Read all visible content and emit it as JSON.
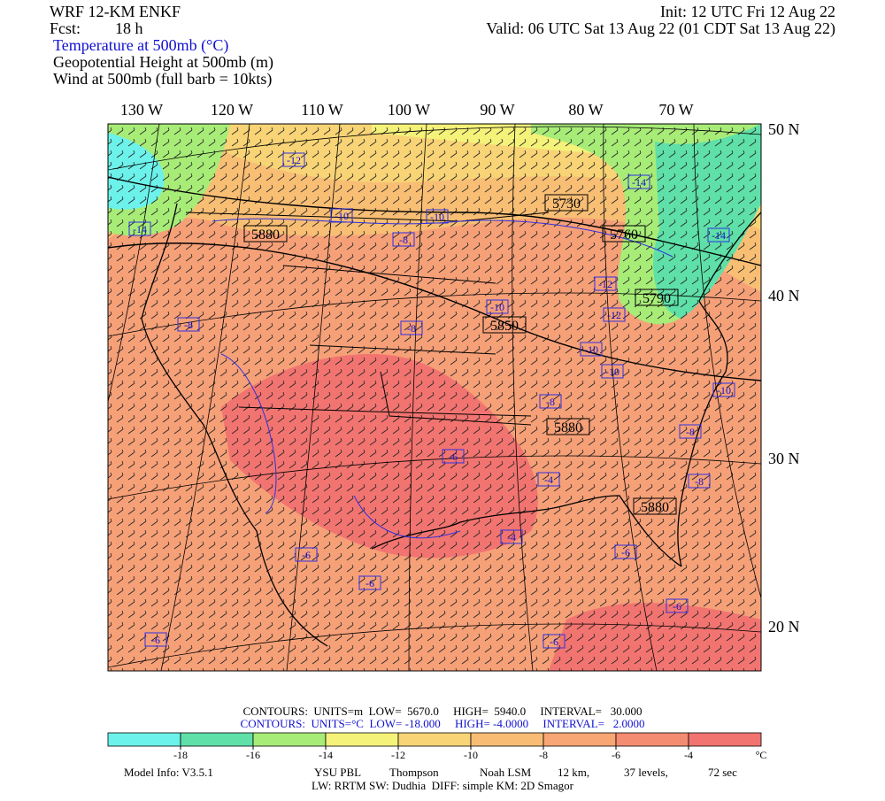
{
  "header": {
    "model": "WRF 12-KM ENKF",
    "fcst_label": "Fcst:",
    "fcst": "18 h",
    "init": "Init: 12 UTC Fri 12 Aug 22",
    "valid": "Valid: 06 UTC Sat 13 Aug 22 (01 CDT Sat 13 Aug 22)",
    "fields": [
      "Temperature at 500mb (°C)",
      "Geopotential Height at 500mb (m)",
      "Wind at 500mb (full barb = 10kts)"
    ]
  },
  "map": {
    "lon_labels": [
      "130 W",
      "120 W",
      "110 W",
      "100 W",
      "90 W",
      "80 W",
      "70 W"
    ],
    "lat_labels": [
      "50 N",
      "40 N",
      "30 N",
      "20 N"
    ],
    "height_labels": [
      5880,
      5730,
      5760,
      5790,
      5850,
      5880,
      5880
    ],
    "temperature_labels": [
      -12,
      -10,
      -10,
      -8,
      -14,
      -14,
      -14,
      -12,
      -12,
      -10,
      -8,
      -8,
      -10,
      -10,
      -10,
      -8,
      -8,
      -6,
      -4,
      -8,
      -4,
      -6,
      -6,
      -6,
      -6,
      -6,
      -6
    ]
  },
  "contours": {
    "height": "CONTOURS:  UNITS=m  LOW=  5670.0     HIGH=  5940.0     INTERVAL=   30.000",
    "temperature": "CONTOURS:  UNITS=°C  LOW= -18.000     HIGH= -4.0000     INTERVAL=   2.0000"
  },
  "colorbar": {
    "range": [
      -20,
      -2
    ],
    "ticks": [
      -18,
      -16,
      -14,
      -12,
      -10,
      -8,
      -6,
      -4
    ],
    "unit": "°C",
    "colors": [
      "#6cf2ea",
      "#5ee0a8",
      "#a8ec78",
      "#f5f27a",
      "#f8d476",
      "#f8bc74",
      "#f7a674",
      "#f48c72",
      "#f27470"
    ]
  },
  "model_info": [
    "Model Info: V3.5.1",
    "YSU PBL",
    "Thompson",
    "Noah LSM",
    "12 km,",
    "37 levels,",
    "72 sec"
  ],
  "physics": "LW: RRTM SW: Dudhia  DIFF: simple KM: 2D Smagor"
}
